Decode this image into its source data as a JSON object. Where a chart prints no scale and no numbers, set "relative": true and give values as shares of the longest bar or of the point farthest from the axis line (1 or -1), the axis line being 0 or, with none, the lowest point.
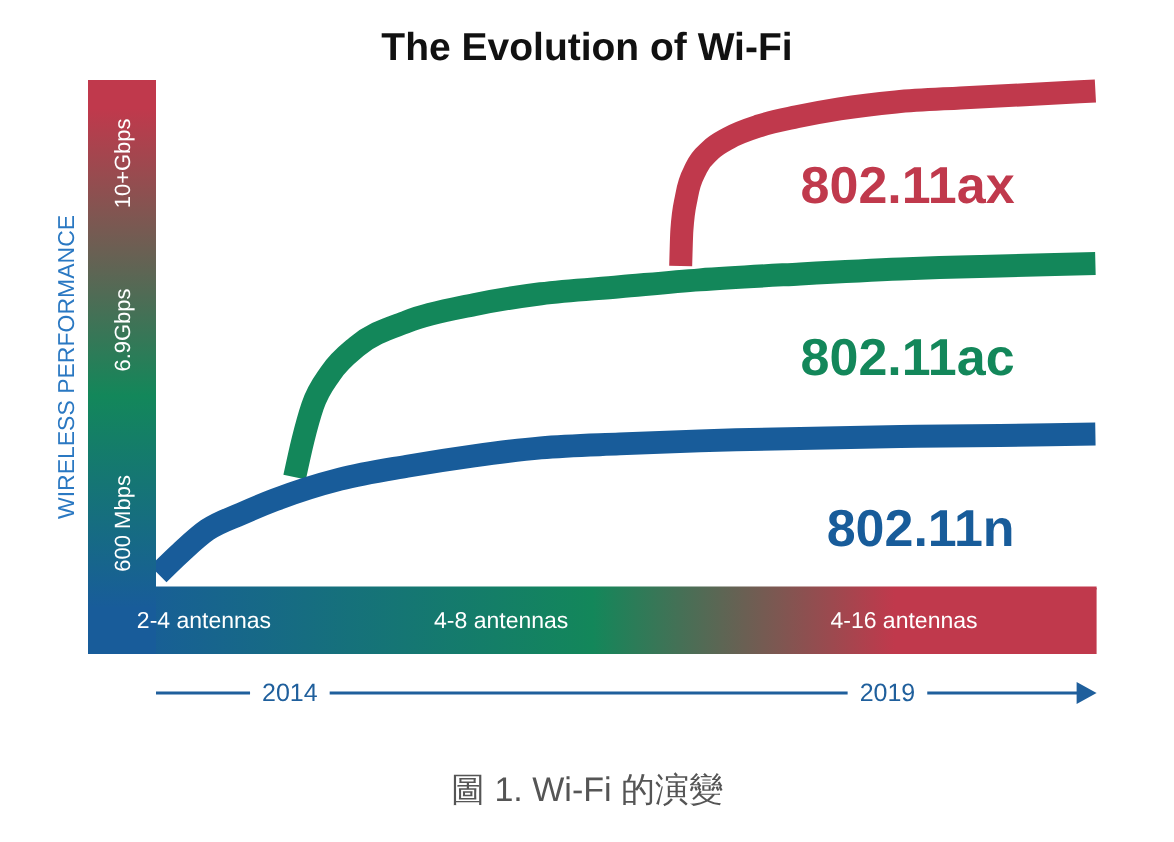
{
  "chart_data": {
    "type": "line",
    "title": "The Evolution of Wi-Fi",
    "ylabel": "WIRELESS PERFORMANCE",
    "relative": true,
    "xlim": [
      2012.88,
      2020.75
    ],
    "xticks": [
      2014,
      2019
    ],
    "line_style": "solid",
    "series": [
      {
        "name": "802.11n",
        "color": "#185c9a",
        "x": [
          2012.9,
          2013.09,
          2013.31,
          2013.59,
          2013.87,
          2014.42,
          2014.98,
          2015.54,
          2016.1,
          2016.76,
          2017.43,
          2018.27,
          2019.11,
          2019.94,
          2020.74
        ],
        "values": [
          0.028,
          0.072,
          0.117,
          0.149,
          0.177,
          0.219,
          0.245,
          0.266,
          0.282,
          0.29,
          0.296,
          0.301,
          0.305,
          0.307,
          0.31
        ]
      },
      {
        "name": "802.11ac",
        "color": "#13875a",
        "x": [
          2014.04,
          2014.11,
          2014.19,
          2014.34,
          2014.56,
          2014.98,
          2015.54,
          2016.1,
          2016.76,
          2017.43,
          2018.27,
          2019.11,
          2019.94,
          2020.74
        ],
        "values": [
          0.223,
          0.298,
          0.366,
          0.432,
          0.486,
          0.536,
          0.57,
          0.592,
          0.606,
          0.62,
          0.632,
          0.642,
          0.648,
          0.653
        ]
      },
      {
        "name": "802.11ax",
        "color": "#c0394c",
        "x": [
          2017.27,
          2017.28,
          2017.32,
          2017.4,
          2017.52,
          2017.67,
          2017.93,
          2018.24,
          2018.6,
          2019.07,
          2019.61,
          2020.11,
          2020.74
        ],
        "values": [
          0.648,
          0.72,
          0.789,
          0.845,
          0.881,
          0.905,
          0.93,
          0.948,
          0.964,
          0.978,
          0.986,
          0.992,
          1
        ]
      }
    ],
    "annotations": [
      "600 Mbps",
      "6.9Gbps",
      "10+Gbps",
      "2-4 antennas",
      "4-8 antennas",
      "4-16 antennas",
      "圖 1. Wi-Fi 的演變"
    ]
  }
}
